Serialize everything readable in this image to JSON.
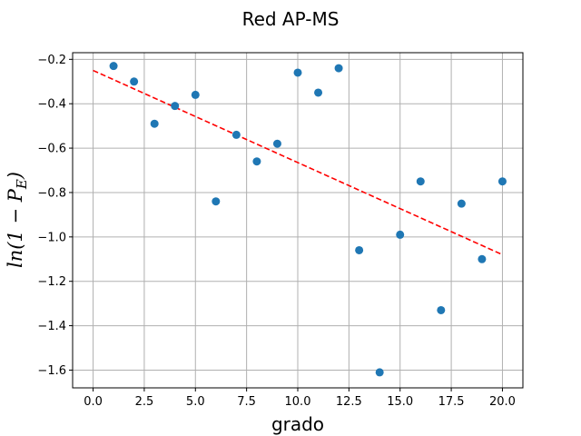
{
  "chart_data": {
    "type": "scatter",
    "title": "Red AP-MS",
    "xlabel": "grado",
    "ylabel": "ln(1 − P_E)",
    "xlim": [
      -1.0,
      21.0
    ],
    "ylim": [
      -1.68,
      -0.17
    ],
    "grid": true,
    "xticks": [
      0.0,
      2.5,
      5.0,
      7.5,
      10.0,
      12.5,
      15.0,
      17.5,
      20.0
    ],
    "xtick_labels": [
      "0.0",
      "2.5",
      "5.0",
      "7.5",
      "10.0",
      "12.5",
      "15.0",
      "17.5",
      "20.0"
    ],
    "yticks": [
      -0.2,
      -0.4,
      -0.6,
      -0.8,
      -1.0,
      -1.2,
      -1.4,
      -1.6
    ],
    "ytick_labels": [
      "−0.2",
      "−0.4",
      "−0.6",
      "−0.8",
      "−1.0",
      "−1.2",
      "−1.4",
      "−1.6"
    ],
    "series": [
      {
        "type": "scatter",
        "color": "#1f77b4",
        "x": [
          1,
          2,
          3,
          4,
          5,
          6,
          7,
          8,
          9,
          10,
          11,
          12,
          13,
          14,
          15,
          16,
          17,
          18,
          19,
          20
        ],
        "y": [
          -0.23,
          -0.3,
          -0.49,
          -0.41,
          -0.36,
          -0.84,
          -0.54,
          -0.66,
          -0.58,
          -0.26,
          -0.35,
          -0.24,
          -1.06,
          -1.61,
          -0.99,
          -0.75,
          -1.33,
          -0.85,
          -1.1,
          -0.75
        ]
      },
      {
        "type": "line",
        "style": "dashed",
        "color": "#ff0000",
        "x": [
          0,
          20
        ],
        "y": [
          -0.25,
          -1.08
        ]
      }
    ]
  }
}
